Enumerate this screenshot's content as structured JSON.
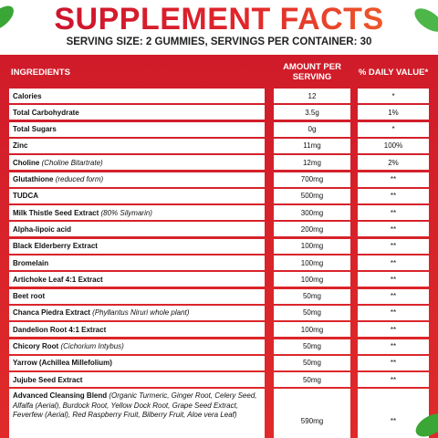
{
  "header": {
    "title": "SUPPLEMENT FACTS",
    "subtitle": "SERVING SIZE: 2 GUMMIES, SERVINGS PER CONTAINER: 30"
  },
  "table": {
    "columns": [
      "INGREDIENTS",
      "AMOUNT PER SERVING",
      "% DAILY VALUE*"
    ],
    "rows": [
      {
        "name": "Calories",
        "amount": "12",
        "daily_value": "*"
      },
      {
        "name": "Total Carbohydrate",
        "amount": "3.5g",
        "daily_value": "1%"
      },
      {
        "name": "Total Sugars",
        "amount": "0g",
        "daily_value": "*"
      },
      {
        "name": "Zinc",
        "amount": "11mg",
        "daily_value": "100%"
      },
      {
        "name": "Choline",
        "note": "(Choline Bitartrate)",
        "amount": "12mg",
        "daily_value": "2%"
      },
      {
        "name": "Glutathione",
        "note": "(reduced form)",
        "amount": "700mg",
        "daily_value": "**"
      },
      {
        "name": "TUDCA",
        "amount": "500mg",
        "daily_value": "**"
      },
      {
        "name": "Milk Thistle Seed Extract",
        "note": "(80% Silymarin)",
        "amount": "300mg",
        "daily_value": "**"
      },
      {
        "name": "Alpha-lipoic acid",
        "amount": "200mg",
        "daily_value": "**"
      },
      {
        "name": "Black Elderberry Extract",
        "amount": "100mg",
        "daily_value": "**"
      },
      {
        "name": "Bromelain",
        "amount": "100mg",
        "daily_value": "**"
      },
      {
        "name": "Artichoke Leaf 4:1 Extract",
        "amount": "100mg",
        "daily_value": "**"
      },
      {
        "name": "Beet root",
        "amount": "50mg",
        "daily_value": "**"
      },
      {
        "name": "Chanca Piedra Extract",
        "note": "(Phyllantus Niruri whole plant)",
        "amount": "50mg",
        "daily_value": "**"
      },
      {
        "name": "Dandelion Root 4:1 Extract",
        "amount": "100mg",
        "daily_value": "**"
      },
      {
        "name": "Chicory Root",
        "note": "(Cichorium Intybus)",
        "amount": "50mg",
        "daily_value": "**"
      },
      {
        "name": "Yarrow (Achillea Millefolium)",
        "amount": "50mg",
        "daily_value": "**"
      },
      {
        "name": "Jujube Seed Extract",
        "amount": "50mg",
        "daily_value": "**"
      },
      {
        "name": "Advanced Cleansing Blend",
        "note": "(Organic Turmeric, Ginger Root, Celery Seed, Alfalfa (Aerial), Burdock Root, Yellow Dock Root, Grape Seed Extract, Feverfew (Aerial), Red Raspberry Fruit, Bilberry Fruit, Aloe vera Leaf)",
        "amount": "590mg",
        "daily_value": "**"
      }
    ]
  }
}
